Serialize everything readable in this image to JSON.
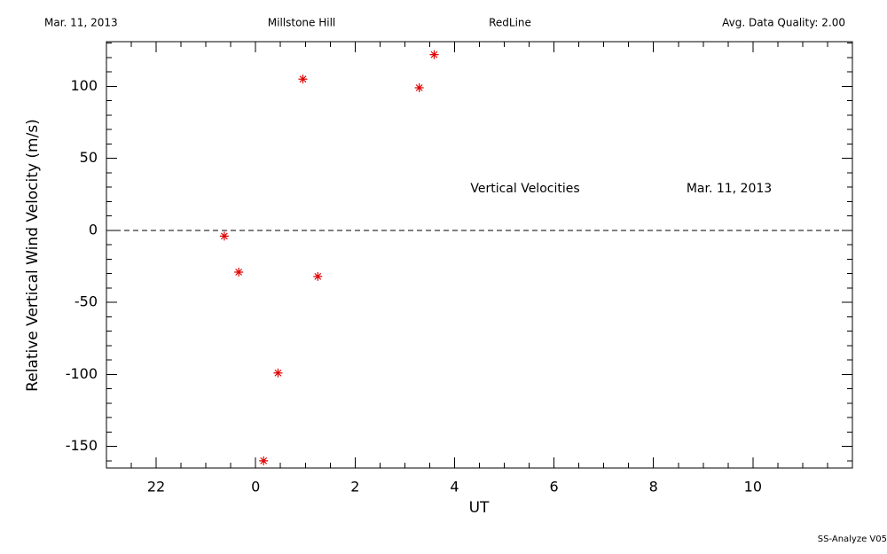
{
  "chart_data": {
    "type": "scatter",
    "header": [
      "Mar. 11, 2013",
      "Millstone Hill",
      "RedLine",
      "Avg. Data Quality: 2.00"
    ],
    "annotations": [
      "Vertical Velocities",
      "Mar. 11, 2013"
    ],
    "footer": "SS-Analyze V05",
    "xlabel": "UT",
    "ylabel": "Relative Vertical Wind Velocity (m/s)",
    "x": [
      -0.63,
      -0.34,
      0.16,
      0.45,
      0.95,
      1.25,
      3.29,
      3.59
    ],
    "series": [
      {
        "color": "#e00000",
        "values": [
          -4,
          -29,
          -160,
          -99,
          105,
          -32,
          99,
          122
        ]
      }
    ],
    "xlim": [
      -3,
      12
    ],
    "ylim": [
      -165,
      131
    ],
    "xticks": [
      {
        "value": -2,
        "label": "22"
      },
      0,
      2,
      4,
      6,
      8,
      10
    ],
    "yticks": [
      -150,
      -100,
      -50,
      0,
      50,
      100
    ],
    "hline": 0,
    "grid": false
  }
}
